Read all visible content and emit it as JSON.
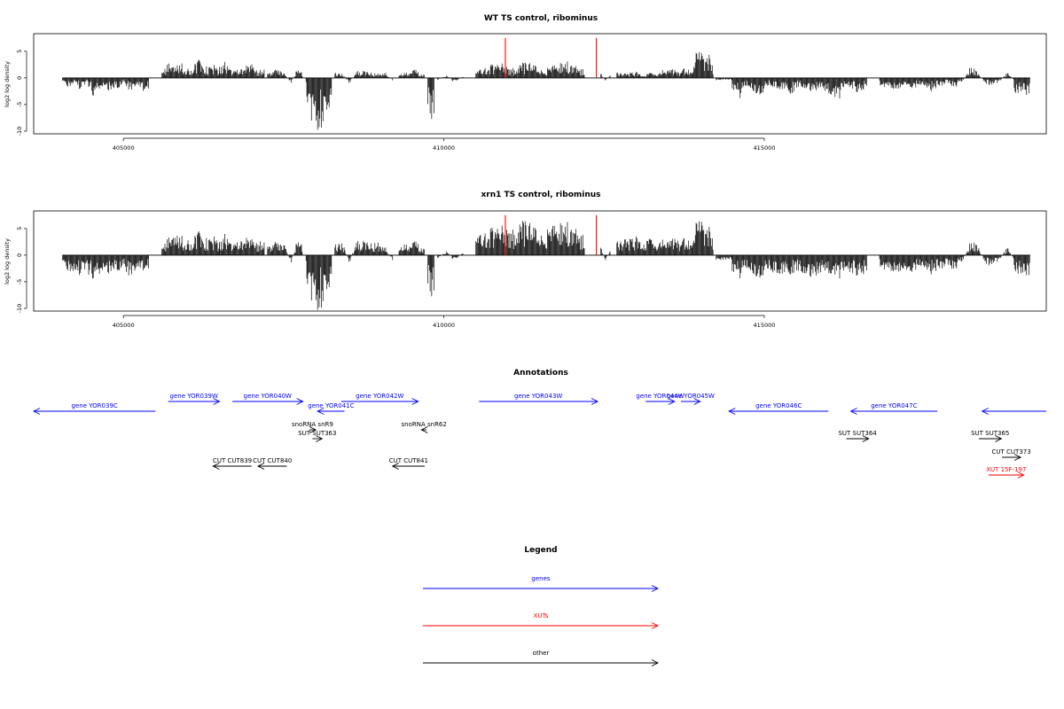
{
  "colors": {
    "gene": "#0000ff",
    "xut": "#ff0000",
    "other": "#000000",
    "bar": "#000000",
    "marker": "#ff0000",
    "frame": "#000000"
  },
  "chart_data": [
    {
      "type": "bar",
      "title": "WT TS control, ribominus",
      "ylabel": "log2 log density",
      "xlim": [
        403600,
        419400
      ],
      "ylim": [
        -10.5,
        8.3
      ],
      "xticks": [
        405000,
        410000,
        415000
      ],
      "xtick_labels": [
        "405000",
        "410000",
        "415000"
      ],
      "yticks": [
        5,
        0,
        -5,
        -10
      ],
      "ytick_labels": [
        "5",
        "0",
        "-5",
        "-10"
      ],
      "markers": [
        {
          "x": 410960,
          "y": 7.5
        },
        {
          "x": 412380,
          "y": 7.5
        }
      ],
      "series": [
        {
          "profile": [
            {
              "range": [
                404050,
                405400
              ],
              "values": [
                -1.0,
                -2.0,
                -0.5,
                -2.5,
                -1.0,
                -3.5,
                -2.0,
                -1.5,
                -3.0,
                -2.0,
                -1.0,
                -2.5,
                -1.5,
                -3.0,
                -2.0
              ]
            },
            {
              "range": [
                405600,
                406500
              ],
              "values": [
                1.5,
                2.5,
                2.0,
                3.0,
                1.5,
                2.5,
                3.5,
                2.0,
                2.5,
                1.5
              ]
            },
            {
              "range": [
                406500,
                407200
              ],
              "values": [
                2.5,
                3.0,
                2.0,
                1.5,
                2.0,
                3.0,
                1.0,
                2.0
              ]
            },
            {
              "range": [
                407250,
                407800
              ],
              "values": [
                1.0,
                1.5,
                2.0,
                0.5,
                -1.0,
                1.5,
                1.0
              ]
            },
            {
              "range": [
                407850,
                408250
              ],
              "values": [
                -3.0,
                -8.0,
                -9.5,
                -8.5,
                -7.0,
                -4.0
              ]
            },
            {
              "range": [
                408300,
                409200
              ],
              "values": [
                1.0,
                0.8,
                -1.0,
                1.2,
                1.5,
                0.9,
                0.8,
                1.0,
                -0.5
              ]
            },
            {
              "range": [
                409300,
                409700
              ],
              "values": [
                1.0,
                1.2,
                0.8,
                1.5,
                1.0,
                0.5
              ]
            },
            {
              "range": [
                409750,
                409850
              ],
              "values": [
                -6.0,
                -8.0,
                -7.5
              ]
            },
            {
              "range": [
                409900,
                410300
              ],
              "values": [
                -0.5,
                0.5,
                -0.8,
                0.3
              ]
            },
            {
              "range": [
                410500,
                412200
              ],
              "values": [
                1.0,
                2.0,
                2.5,
                3.0,
                1.5,
                2.0,
                3.0,
                2.5,
                1.5,
                2.0,
                2.5,
                3.0,
                2.0,
                1.5
              ]
            },
            {
              "range": [
                412450,
                412600
              ],
              "values": [
                0.8,
                -0.5,
                0.6
              ]
            },
            {
              "range": [
                412700,
                413400
              ],
              "values": [
                1.0,
                0.8,
                1.2,
                0.5,
                1.0,
                0.8
              ]
            },
            {
              "range": [
                413400,
                413900
              ],
              "values": [
                1.5,
                2.0,
                1.0,
                1.8,
                1.2
              ]
            },
            {
              "range": [
                413900,
                414200
              ],
              "values": [
                3.5,
                5.0,
                4.5,
                3.0,
                4.5,
                2.5
              ]
            },
            {
              "range": [
                414250,
                414500
              ],
              "values": [
                -0.5,
                -0.3,
                -0.6
              ]
            },
            {
              "range": [
                414500,
                415900
              ],
              "values": [
                -2.0,
                -3.5,
                -1.5,
                -2.5,
                -3.0,
                -1.5,
                -2.0,
                -2.5,
                -3.0,
                -1.5,
                -2.0,
                -2.5,
                -1.5
              ]
            },
            {
              "range": [
                415900,
                416600
              ],
              "values": [
                -2.5,
                -3.0,
                -5.5,
                -1.5,
                -2.0,
                -3.0,
                -1.5
              ]
            },
            {
              "range": [
                416800,
                418000
              ],
              "values": [
                -2.0,
                -1.5,
                -2.5,
                -1.0,
                -2.0,
                -1.5,
                -2.5,
                -1.5,
                -1.0,
                -2.0
              ]
            },
            {
              "range": [
                418000,
                418900
              ],
              "values": [
                -1.0,
                -0.5,
                2.5,
                0.8,
                -1.0,
                -1.5,
                -0.8,
                1.0,
                -0.5
              ]
            },
            {
              "range": [
                418900,
                419150
              ],
              "values": [
                -4.5,
                -2.5,
                -3.0,
                -1.5,
                -3.5,
                -2.0
              ]
            }
          ]
        }
      ]
    },
    {
      "type": "bar",
      "title": "xrn1 TS control, ribominus",
      "ylabel": "log2 log density",
      "xlim": [
        403600,
        419400
      ],
      "ylim": [
        -10.5,
        8.3
      ],
      "xticks": [
        405000,
        410000,
        415000
      ],
      "xtick_labels": [
        "405000",
        "410000",
        "415000"
      ],
      "yticks": [
        5,
        0,
        -5,
        -10
      ],
      "ytick_labels": [
        "5",
        "0",
        "-5",
        "-10"
      ],
      "markers": [
        {
          "x": 410960,
          "y": 7.5
        },
        {
          "x": 412380,
          "y": 7.5
        }
      ],
      "series": [
        {
          "profile": [
            {
              "range": [
                404050,
                405400
              ],
              "values": [
                -2.0,
                -3.5,
                -2.5,
                -4.0,
                -3.0,
                -4.5,
                -3.5,
                -2.5,
                -4.0,
                -3.0,
                -2.5,
                -4.0,
                -3.0,
                -3.5,
                -2.5
              ]
            },
            {
              "range": [
                405600,
                406500
              ],
              "values": [
                2.0,
                3.0,
                3.5,
                4.0,
                2.5,
                3.5,
                4.5,
                3.0,
                3.5,
                2.5
              ]
            },
            {
              "range": [
                406500,
                407200
              ],
              "values": [
                3.0,
                4.0,
                3.0,
                2.5,
                3.0,
                3.5,
                2.0,
                3.0
              ]
            },
            {
              "range": [
                407250,
                407800
              ],
              "values": [
                2.0,
                2.5,
                3.0,
                1.5,
                -1.5,
                2.5,
                2.0
              ]
            },
            {
              "range": [
                407850,
                408250
              ],
              "values": [
                -4.0,
                -8.5,
                -10.0,
                -9.0,
                -7.5,
                -4.5
              ]
            },
            {
              "range": [
                408300,
                409200
              ],
              "values": [
                2.0,
                2.5,
                -1.5,
                2.5,
                3.0,
                2.0,
                2.5,
                1.5,
                -1.0
              ]
            },
            {
              "range": [
                409300,
                409700
              ],
              "values": [
                2.0,
                2.5,
                1.5,
                2.5,
                2.0,
                1.0
              ]
            },
            {
              "range": [
                409750,
                409850
              ],
              "values": [
                -6.5,
                -8.0,
                -7.5
              ]
            },
            {
              "range": [
                409900,
                410300
              ],
              "values": [
                -0.8,
                0.8,
                -1.0,
                0.5
              ]
            },
            {
              "range": [
                410500,
                412200
              ],
              "values": [
                3.0,
                4.5,
                5.0,
                6.0,
                4.0,
                5.0,
                6.5,
                5.5,
                4.0,
                5.0,
                5.5,
                6.0,
                4.5,
                3.5
              ]
            },
            {
              "range": [
                412450,
                412600
              ],
              "values": [
                1.5,
                -1.0,
                1.0
              ]
            },
            {
              "range": [
                412700,
                413400
              ],
              "values": [
                2.5,
                3.0,
                3.5,
                2.5,
                3.0,
                2.0
              ]
            },
            {
              "range": [
                413400,
                413900
              ],
              "values": [
                3.0,
                3.5,
                2.5,
                3.0,
                2.5
              ]
            },
            {
              "range": [
                413900,
                414200
              ],
              "values": [
                4.5,
                6.5,
                6.0,
                4.0,
                5.5,
                3.5
              ]
            },
            {
              "range": [
                414250,
                414500
              ],
              "values": [
                -1.0,
                -0.8,
                -1.2
              ]
            },
            {
              "range": [
                414500,
                415900
              ],
              "values": [
                -3.0,
                -4.0,
                -2.5,
                -3.5,
                -4.0,
                -3.0,
                -3.5,
                -4.0,
                -3.5,
                -3.0,
                -3.5,
                -4.0,
                -3.0
              ]
            },
            {
              "range": [
                415900,
                416600
              ],
              "values": [
                -3.0,
                -3.5,
                -5.5,
                -3.0,
                -3.5,
                -4.0,
                -3.0
              ]
            },
            {
              "range": [
                416800,
                418000
              ],
              "values": [
                -3.0,
                -2.5,
                -3.5,
                -2.5,
                -3.0,
                -2.5,
                -3.5,
                -2.5,
                -2.0,
                -3.0
              ]
            },
            {
              "range": [
                418000,
                418900
              ],
              "values": [
                -1.5,
                -1.0,
                3.0,
                1.5,
                -1.5,
                -2.0,
                -1.0,
                1.5,
                -1.0
              ]
            },
            {
              "range": [
                418900,
                419150
              ],
              "values": [
                -4.5,
                -3.0,
                -4.0,
                -2.5,
                -4.0,
                -3.0
              ]
            }
          ]
        }
      ]
    }
  ],
  "annotations": {
    "title": "Annotations",
    "features": [
      {
        "label": "gene YOR039C",
        "kind": "gene",
        "start": 403600,
        "end": 405500,
        "strand": "-",
        "row": 1
      },
      {
        "label": "gene YOR039W",
        "kind": "gene",
        "start": 405700,
        "end": 406500,
        "strand": "+",
        "row": 0
      },
      {
        "label": "gene YOR040W",
        "kind": "gene",
        "start": 406700,
        "end": 407800,
        "strand": "+",
        "row": 0
      },
      {
        "label": "gene YOR041C",
        "kind": "gene",
        "start": 408030,
        "end": 408450,
        "strand": "-",
        "row": 1
      },
      {
        "label": "gene YOR042W",
        "kind": "gene",
        "start": 408400,
        "end": 409600,
        "strand": "+",
        "row": 0
      },
      {
        "label": "gene YOR043W",
        "kind": "gene",
        "start": 410550,
        "end": 412400,
        "strand": "+",
        "row": 0
      },
      {
        "label": "gene YOR044W",
        "kind": "gene",
        "start": 413150,
        "end": 413600,
        "strand": "+",
        "row": 0
      },
      {
        "label": "gene YOR045W",
        "kind": "gene",
        "start": 413700,
        "end": 414000,
        "strand": "+",
        "row": 0
      },
      {
        "label": "gene YOR046C",
        "kind": "gene",
        "start": 414450,
        "end": 416000,
        "strand": "-",
        "row": 1
      },
      {
        "label": "gene YOR047C",
        "kind": "gene",
        "start": 416350,
        "end": 417700,
        "strand": "-",
        "row": 1
      },
      {
        "label": "",
        "kind": "gene",
        "start": 418400,
        "end": 419400,
        "strand": "-",
        "row": 1
      },
      {
        "label": "snoRNA snR9",
        "kind": "other",
        "start": 407900,
        "end": 408000,
        "strand": "+",
        "row": 2
      },
      {
        "label": "SUT SUT363",
        "kind": "other",
        "start": 407950,
        "end": 408100,
        "strand": "+",
        "row": 3
      },
      {
        "label": "snoRNA snR62",
        "kind": "other",
        "start": 409650,
        "end": 409730,
        "strand": "-",
        "row": 2
      },
      {
        "label": "SUT SUT364",
        "kind": "other",
        "start": 416280,
        "end": 416630,
        "strand": "+",
        "row": 3
      },
      {
        "label": "SUT SUT365",
        "kind": "other",
        "start": 418350,
        "end": 418700,
        "strand": "+",
        "row": 3
      },
      {
        "label": "CUT CUT373",
        "kind": "other",
        "start": 418710,
        "end": 419000,
        "strand": "+",
        "row": 4
      },
      {
        "label": "CUT CUT839",
        "kind": "other",
        "start": 406400,
        "end": 407000,
        "strand": "-",
        "row": 5
      },
      {
        "label": "CUT CUT840",
        "kind": "other",
        "start": 407100,
        "end": 407550,
        "strand": "-",
        "row": 5
      },
      {
        "label": "CUT CUT841",
        "kind": "other",
        "start": 409200,
        "end": 409700,
        "strand": "-",
        "row": 5
      },
      {
        "label": "XUT 15F-197",
        "kind": "xut",
        "start": 418500,
        "end": 419050,
        "strand": "+",
        "row": 6
      }
    ]
  },
  "legend": {
    "title": "Legend",
    "items": [
      {
        "label": "genes",
        "kind": "gene"
      },
      {
        "label": "XUTs",
        "kind": "xut"
      },
      {
        "label": "other",
        "kind": "other"
      }
    ]
  }
}
